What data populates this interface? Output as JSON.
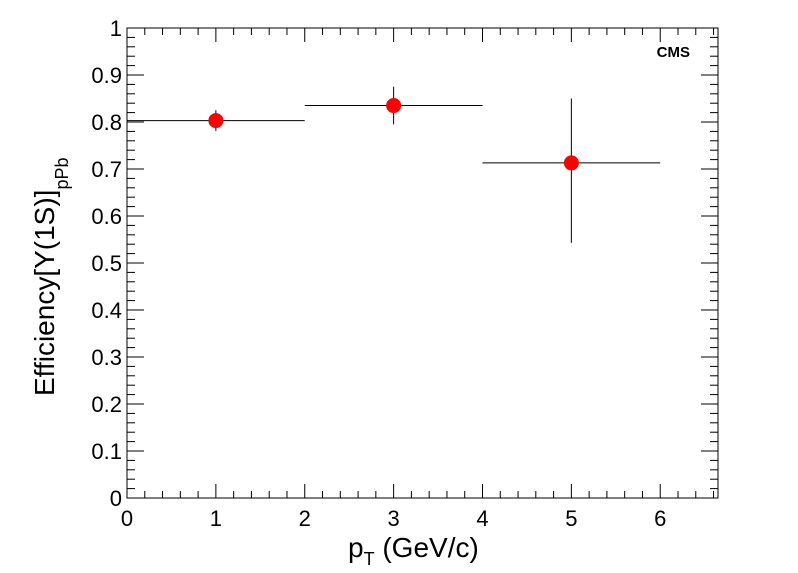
{
  "chart_data": {
    "type": "scatter",
    "title": "",
    "annotation": "CMS",
    "xlabel": {
      "main": "p",
      "sub": "T",
      "rest": " (GeV/c)"
    },
    "ylabel": {
      "main": "Efficiency[Υ(1S)]",
      "sub": "pPb"
    },
    "xlim": [
      0,
      6.65
    ],
    "ylim": [
      0,
      1
    ],
    "x_ticks": [
      0,
      1,
      2,
      3,
      4,
      5,
      6
    ],
    "x_tick_labels": [
      "0",
      "1",
      "2",
      "3",
      "4",
      "5",
      "6"
    ],
    "y_ticks": [
      0,
      0.1,
      0.2,
      0.3,
      0.4,
      0.5,
      0.6,
      0.7,
      0.8,
      0.9,
      1
    ],
    "y_tick_labels": [
      "0",
      "0.1",
      "0.2",
      "0.3",
      "0.4",
      "0.5",
      "0.6",
      "0.7",
      "0.8",
      "0.9",
      "1"
    ],
    "grid": false,
    "marker_color": "#ff0000",
    "points": [
      {
        "x": 1,
        "y": 0.803,
        "x_err": 1,
        "y_err_low": 0.022,
        "y_err_high": 0.022
      },
      {
        "x": 3,
        "y": 0.835,
        "x_err": 1,
        "y_err_low": 0.04,
        "y_err_high": 0.04
      },
      {
        "x": 5,
        "y": 0.713,
        "x_err": 1,
        "y_err_low": 0.17,
        "y_err_high": 0.137
      }
    ]
  }
}
